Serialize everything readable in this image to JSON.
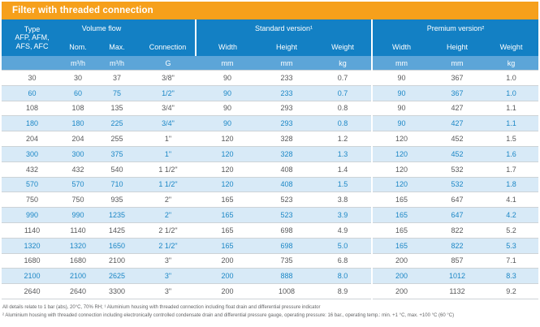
{
  "title": "Filter with threaded connection",
  "header": {
    "type_lines": [
      "Type",
      "AFP, AFM,",
      "AFS, AFC"
    ],
    "volume_flow_label": "Volume flow",
    "standard_version_label": "Standard version¹",
    "premium_version_label": "Premium version²",
    "columns": {
      "nom": "Nom.",
      "max": "Max.",
      "connection": "Connection",
      "std_width": "Width",
      "std_height": "Height",
      "std_weight": "Weight",
      "prm_width": "Width",
      "prm_height": "Height",
      "prm_weight": "Weight"
    },
    "units": {
      "nom": "m³/h",
      "max": "m³/h",
      "connection": "G",
      "std_width": "mm",
      "std_height": "mm",
      "std_weight": "kg",
      "prm_width": "mm",
      "prm_height": "mm",
      "prm_weight": "kg"
    }
  },
  "table": {
    "rows": [
      [
        "30",
        "30",
        "37",
        "3/8\"",
        "90",
        "233",
        "0.7",
        "90",
        "367",
        "1.0"
      ],
      [
        "60",
        "60",
        "75",
        "1/2\"",
        "90",
        "233",
        "0.7",
        "90",
        "367",
        "1.0"
      ],
      [
        "108",
        "108",
        "135",
        "3/4\"",
        "90",
        "293",
        "0.8",
        "90",
        "427",
        "1.1"
      ],
      [
        "180",
        "180",
        "225",
        "3/4\"",
        "90",
        "293",
        "0.8",
        "90",
        "427",
        "1.1"
      ],
      [
        "204",
        "204",
        "255",
        "1\"",
        "120",
        "328",
        "1.2",
        "120",
        "452",
        "1.5"
      ],
      [
        "300",
        "300",
        "375",
        "1\"",
        "120",
        "328",
        "1.3",
        "120",
        "452",
        "1.6"
      ],
      [
        "432",
        "432",
        "540",
        "1 1/2\"",
        "120",
        "408",
        "1.4",
        "120",
        "532",
        "1.7"
      ],
      [
        "570",
        "570",
        "710",
        "1 1/2\"",
        "120",
        "408",
        "1.5",
        "120",
        "532",
        "1.8"
      ],
      [
        "750",
        "750",
        "935",
        "2\"",
        "165",
        "523",
        "3.8",
        "165",
        "647",
        "4.1"
      ],
      [
        "990",
        "990",
        "1235",
        "2\"",
        "165",
        "523",
        "3.9",
        "165",
        "647",
        "4.2"
      ],
      [
        "1140",
        "1140",
        "1425",
        "2 1/2\"",
        "165",
        "698",
        "4.9",
        "165",
        "822",
        "5.2"
      ],
      [
        "1320",
        "1320",
        "1650",
        "2 1/2\"",
        "165",
        "698",
        "5.0",
        "165",
        "822",
        "5.3"
      ],
      [
        "1680",
        "1680",
        "2100",
        "3\"",
        "200",
        "735",
        "6.8",
        "200",
        "857",
        "7.1"
      ],
      [
        "2100",
        "2100",
        "2625",
        "3\"",
        "200",
        "888",
        "8.0",
        "200",
        "1012",
        "8.3"
      ],
      [
        "2640",
        "2640",
        "3300",
        "3\"",
        "200",
        "1008",
        "8.9",
        "200",
        "1132",
        "9.2"
      ]
    ]
  },
  "footnotes": [
    "All details relate to 1 bar (abs), 20°C, 70% RH; ¹ Aluminium housing with threaded connection including float drain and differential pressure indicator",
    "² Aluminium housing with threaded connection including electronically controlled condensate drain and differential pressure gauge, operating pressure: 16 bar., operating temp.: min. +1 °C, max. +100 °C (60 °C)"
  ],
  "colors": {
    "accent_orange": "#F6A01B",
    "header_blue": "#1380C4",
    "units_blue": "#5CA5D8",
    "row_alt_blue": "#D8EAF7",
    "text_blue": "#1C87C6",
    "text_dark": "#58595B"
  }
}
